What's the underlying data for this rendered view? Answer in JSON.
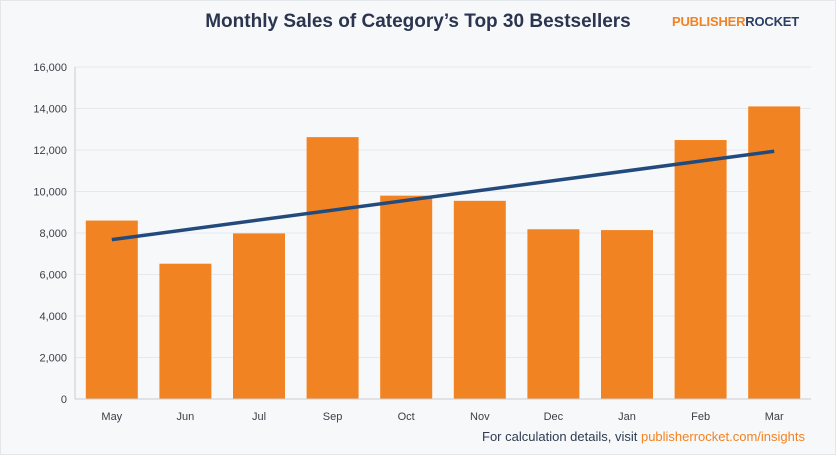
{
  "header": {
    "title": "Monthly Sales of Category’s Top 30 Bestsellers",
    "brand_part1": "PUBLISHER",
    "brand_part2": "ROCKET"
  },
  "footer": {
    "text": "For calculation details, visit ",
    "link": "publisherrocket.com/insights"
  },
  "colors": {
    "bar": "#f28322",
    "trend": "#234a7d",
    "grid": "#e6e8ec",
    "axis": "#c9ccd1"
  },
  "chart_data": {
    "type": "bar",
    "title": "Monthly Sales of Category’s Top 30 Bestsellers",
    "xlabel": "",
    "ylabel": "",
    "categories": [
      "May",
      "Jun",
      "Jul",
      "Sep",
      "Oct",
      "Nov",
      "Dec",
      "Jan",
      "Feb",
      "Mar"
    ],
    "series": [
      {
        "name": "Monthly Sales",
        "values": [
          8600,
          6520,
          7980,
          12620,
          9800,
          9550,
          8180,
          8140,
          12480,
          14100
        ]
      }
    ],
    "trendline": {
      "name": "Trend",
      "start": 7680,
      "end": 11940
    },
    "ylim": [
      0,
      16000
    ],
    "yticks": [
      0,
      2000,
      4000,
      6000,
      8000,
      10000,
      12000,
      14000,
      16000
    ],
    "ytick_labels": [
      "0",
      "2,000",
      "4,000",
      "6,000",
      "8,000",
      "10,000",
      "12,000",
      "14,000",
      "16,000"
    ],
    "grid": true,
    "legend": "none"
  }
}
